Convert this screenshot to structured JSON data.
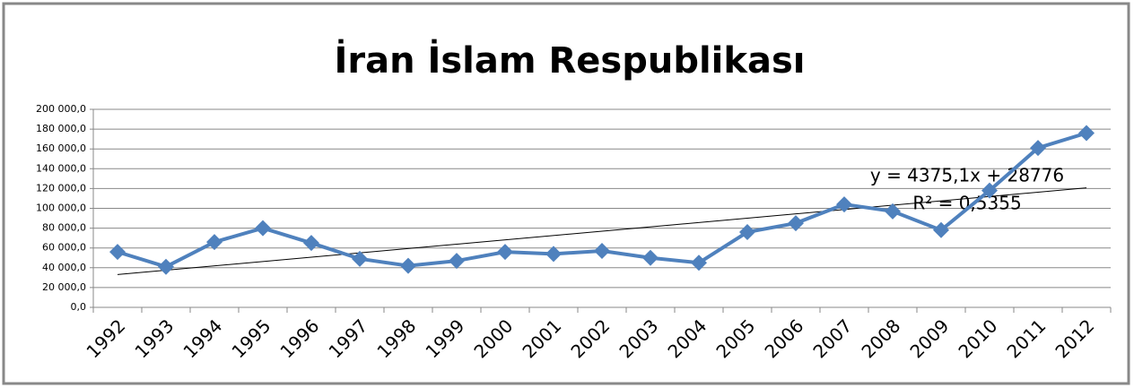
{
  "chart_data": {
    "type": "line",
    "title": "İran İslam Respublikası",
    "categories": [
      "1992",
      "1993",
      "1994",
      "1995",
      "1996",
      "1997",
      "1998",
      "1999",
      "2000",
      "2001",
      "2002",
      "2003",
      "2004",
      "2005",
      "2006",
      "2007",
      "2008",
      "2009",
      "2010",
      "2011",
      "2012"
    ],
    "series": [
      {
        "name": "İran İslam Respublikası",
        "color": "#4f81bd",
        "values": [
          56000,
          41000,
          66000,
          80000,
          65000,
          49000,
          42000,
          47000,
          56000,
          54000,
          57000,
          50000,
          45000,
          76000,
          85000,
          104000,
          97000,
          78000,
          118000,
          161000,
          176000
        ]
      }
    ],
    "trendline": {
      "slope": 4375.1,
      "intercept": 28776,
      "color": "#000000"
    },
    "annotations": [
      "y = 4375,1x + 28776",
      "R² = 0,5355"
    ],
    "ylim": [
      0,
      200000
    ],
    "yticks": [
      {
        "value": 0,
        "label": "0,0"
      },
      {
        "value": 20000,
        "label": "20 000,0"
      },
      {
        "value": 40000,
        "label": "40 000,0"
      },
      {
        "value": 60000,
        "label": "60 000,0"
      },
      {
        "value": 80000,
        "label": "80 000,0"
      },
      {
        "value": 100000,
        "label": "100 000,0"
      },
      {
        "value": 120000,
        "label": "120 000,0"
      },
      {
        "value": 140000,
        "label": "140 000,0"
      },
      {
        "value": 160000,
        "label": "160 000,0"
      },
      {
        "value": 180000,
        "label": "180 000,0"
      },
      {
        "value": 200000,
        "label": "200 000,0"
      }
    ],
    "grid": true
  }
}
